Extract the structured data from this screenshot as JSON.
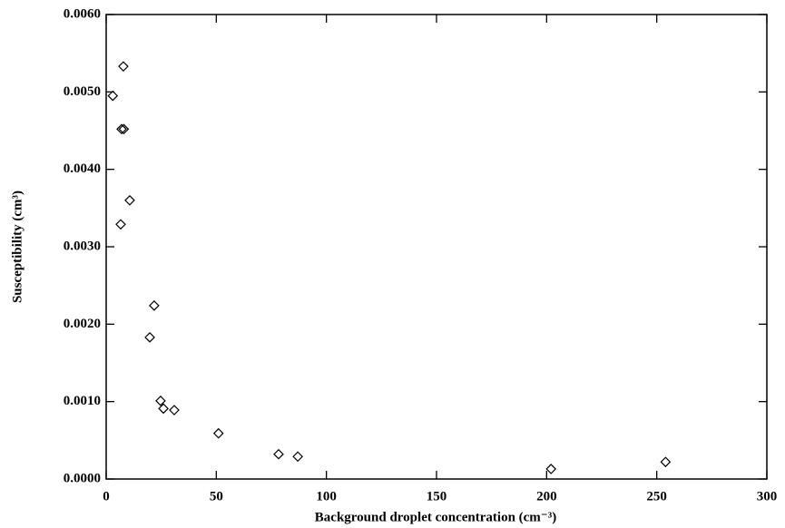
{
  "chart_data": {
    "type": "scatter",
    "x_label": "Background droplet concentration (cm⁻³)",
    "y_label": "Susceptibility (cm³)",
    "x": [
      3,
      7.8,
      7,
      8,
      10.7,
      6.6,
      21.8,
      19.8,
      24.7,
      26,
      30.9,
      51,
      78.3,
      87,
      202,
      254
    ],
    "values": [
      0.00495,
      0.00533,
      0.00452,
      0.00452,
      0.0036,
      0.00329,
      0.00224,
      0.00183,
      0.00101,
      0.00091,
      0.00089,
      0.00059,
      0.00032,
      0.00029,
      0.00013,
      0.00022
    ],
    "color": "#000000",
    "xlim": [
      0,
      300
    ],
    "xticks": [
      0,
      50,
      100,
      150,
      200,
      250,
      300
    ],
    "ylim": [
      0,
      0.006
    ],
    "yticks": [
      {
        "value": 0,
        "label": "0.0000"
      },
      {
        "value": 0.001,
        "label": "0.0010"
      },
      {
        "value": 0.002,
        "label": "0.0020"
      },
      {
        "value": 0.003,
        "label": "0.0030"
      },
      {
        "value": 0.004,
        "label": "0.0040"
      },
      {
        "value": 0.005,
        "label": "0.0050"
      },
      {
        "value": 0.006,
        "label": "0.0060"
      }
    ],
    "marker": "diamond"
  }
}
